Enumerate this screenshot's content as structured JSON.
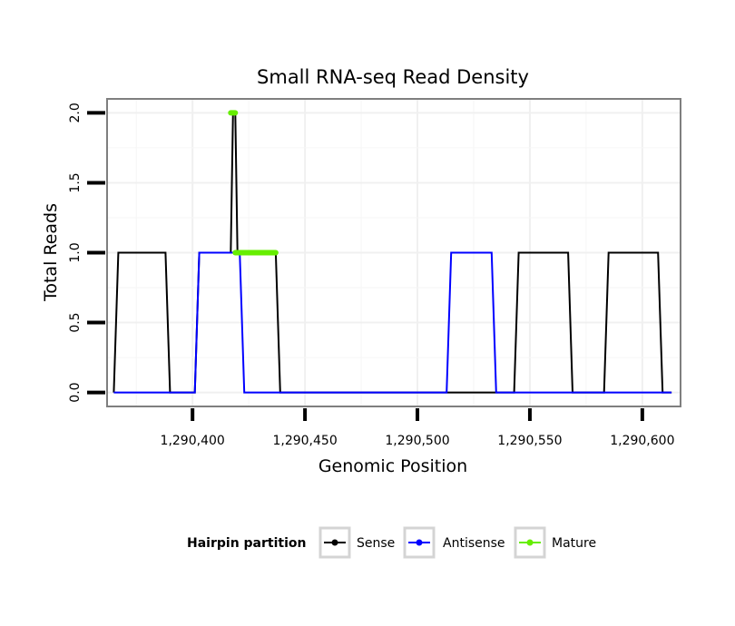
{
  "chart_data": {
    "type": "line",
    "title": "Small RNA-seq Read Density",
    "xlabel": "Genomic Position",
    "ylabel": "Total Reads",
    "xlim": [
      1290362,
      1290617
    ],
    "ylim": [
      -0.1,
      2.1
    ],
    "x_ticks": [
      1290400,
      1290450,
      1290500,
      1290550,
      1290600
    ],
    "x_tick_labels": [
      "1,290,400",
      "1,290,450",
      "1,290,500",
      "1,290,550",
      "1,290,600"
    ],
    "y_ticks": [
      0,
      0.5,
      1,
      1.5,
      2
    ],
    "y_tick_labels": [
      "0.0",
      "0.5",
      "1.0",
      "1.5",
      "2.0"
    ],
    "legend": {
      "title": "Hairpin partition",
      "position": "bottom",
      "entries": [
        {
          "name": "Sense",
          "color": "#000000"
        },
        {
          "name": "Antisense",
          "color": "#0000ff"
        },
        {
          "name": "Mature",
          "color": "#66ee00"
        }
      ]
    },
    "series": [
      {
        "name": "Sense",
        "color": "#000000",
        "x": [
          1290365,
          1290367,
          1290388,
          1290390,
          1290401,
          1290403,
          1290417,
          1290418,
          1290419,
          1290420,
          1290421,
          1290437,
          1290439,
          1290543,
          1290545,
          1290567,
          1290569,
          1290583,
          1290585,
          1290607,
          1290609,
          1290613
        ],
        "y": [
          0,
          1,
          1,
          0,
          0,
          1,
          1,
          2,
          2,
          1,
          1,
          1,
          0,
          0,
          1,
          1,
          0,
          0,
          1,
          1,
          0,
          0
        ]
      },
      {
        "name": "Antisense",
        "color": "#0000ff",
        "x": [
          1290365,
          1290401,
          1290403,
          1290421,
          1290423,
          1290513,
          1290515,
          1290533,
          1290535,
          1290613
        ],
        "y": [
          0,
          0,
          1,
          1,
          0,
          0,
          1,
          1,
          0,
          0
        ]
      },
      {
        "name": "Mature",
        "color": "#66ee00",
        "segments": [
          {
            "x": [
              1290417,
              1290419
            ],
            "y": [
              2,
              2
            ]
          },
          {
            "x": [
              1290419,
              1290437
            ],
            "y": [
              1,
              1
            ]
          }
        ]
      }
    ]
  }
}
